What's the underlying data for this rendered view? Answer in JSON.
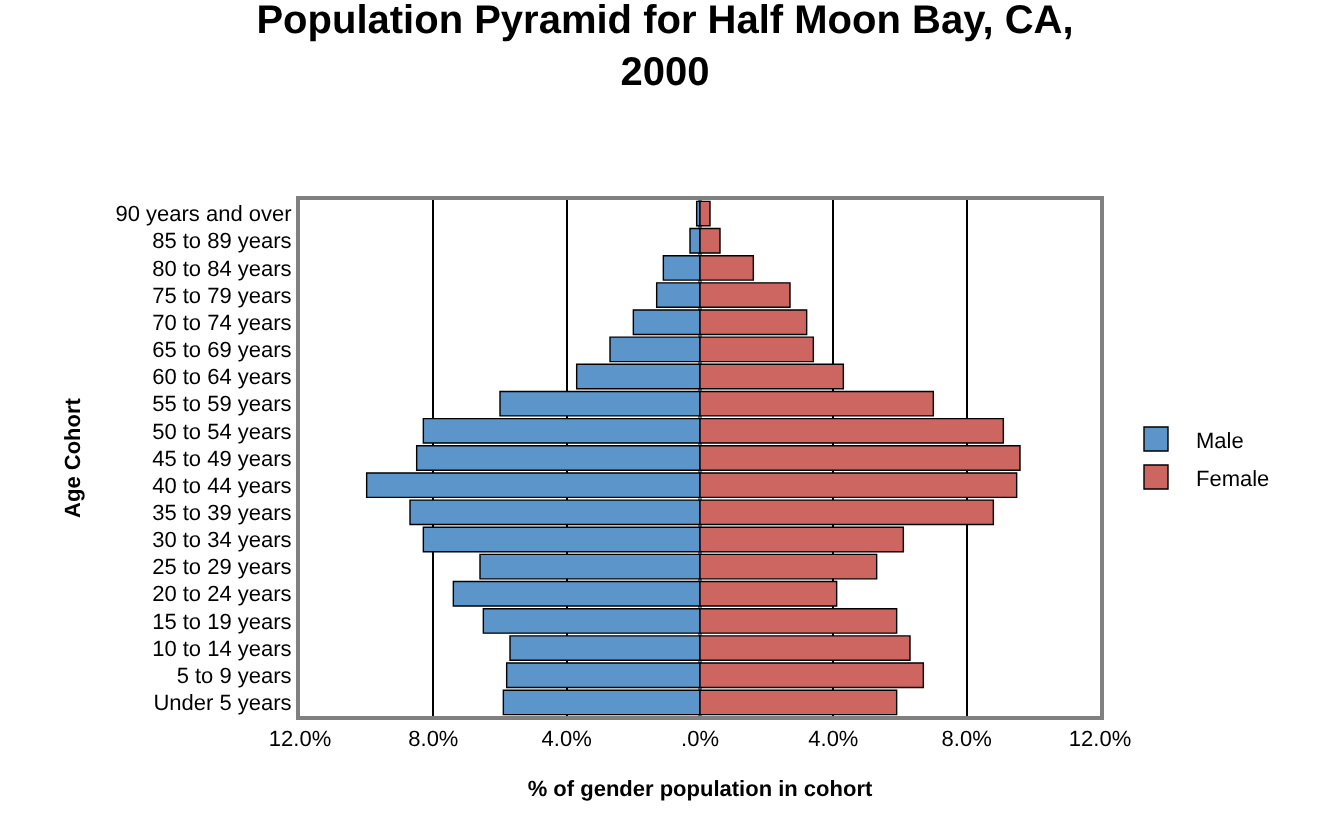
{
  "chart_data": {
    "type": "bar",
    "orientation": "horizontal",
    "title": "Population Pyramid for Half Moon Bay, CA,\n2000",
    "xlabel": "% of gender population in cohort",
    "ylabel": "Age Cohort",
    "categories": [
      "90 years and over",
      "85 to 89 years",
      "80 to 84 years",
      "75 to 79 years",
      "70 to 74 years",
      "65 to 69 years",
      "60 to 64 years",
      "55 to 59 years",
      "50 to 54 years",
      "45 to 49 years",
      "40 to 44 years",
      "35 to 39 years",
      "30 to 34 years",
      "25 to 29 years",
      "20 to 24 years",
      "15 to 19 years",
      "10 to 14 years",
      "5 to 9 years",
      "Under 5 years"
    ],
    "series": [
      {
        "name": "Male",
        "color": "#5b95c9",
        "values": [
          -0.1,
          -0.3,
          -1.1,
          -1.3,
          -2.0,
          -2.7,
          -3.7,
          -6.0,
          -8.3,
          -8.5,
          -10.0,
          -8.7,
          -8.3,
          -6.6,
          -7.4,
          -6.5,
          -5.7,
          -5.8,
          -5.9
        ]
      },
      {
        "name": "Female",
        "color": "#cd6660",
        "values": [
          0.3,
          0.6,
          1.6,
          2.7,
          3.2,
          3.4,
          4.3,
          7.0,
          9.1,
          9.6,
          9.5,
          8.8,
          6.1,
          5.3,
          4.1,
          5.9,
          6.3,
          6.7,
          5.9
        ]
      }
    ],
    "xlim": [
      -12,
      12
    ],
    "xticks": [
      {
        "value": -12,
        "label": "12.0%"
      },
      {
        "value": -8,
        "label": "8.0%"
      },
      {
        "value": -4,
        "label": "4.0%"
      },
      {
        "value": 0,
        "label": ".0%"
      },
      {
        "value": 4,
        "label": "4.0%"
      },
      {
        "value": 8,
        "label": "8.0%"
      },
      {
        "value": 12,
        "label": "12.0%"
      }
    ],
    "grid": "x",
    "legend": "right",
    "stacked": true
  }
}
